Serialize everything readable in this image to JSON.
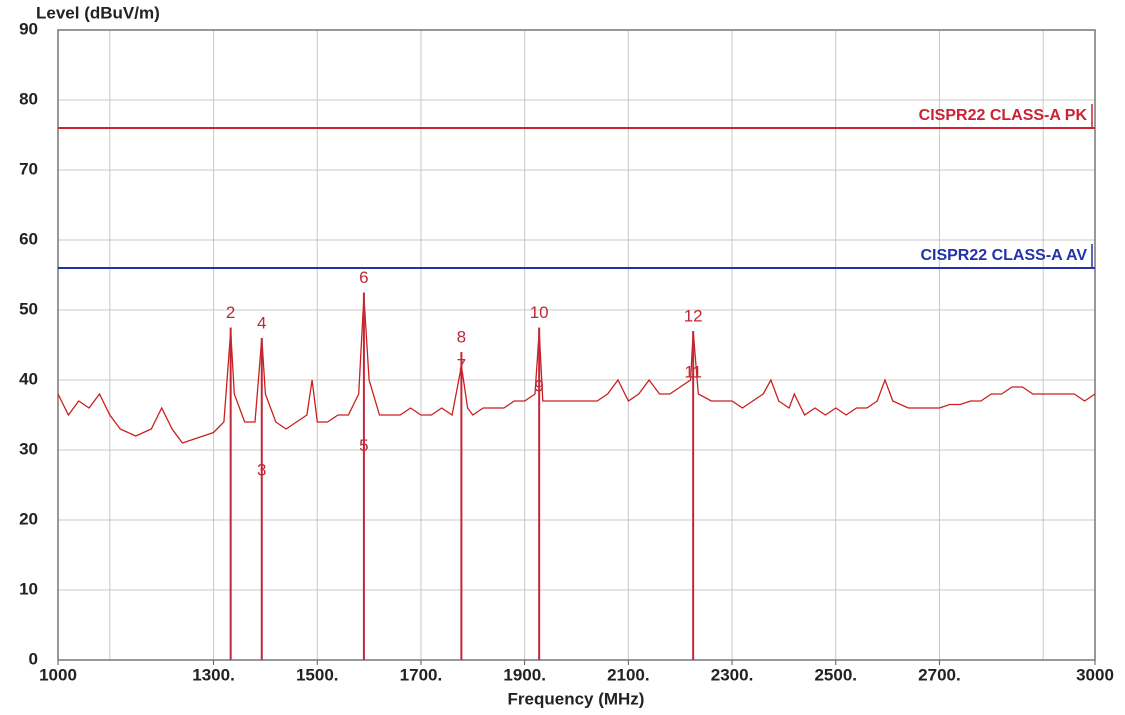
{
  "chart_data": {
    "type": "line",
    "x_label": "Frequency (MHz)",
    "y_label": "Level (dBuV/m)",
    "xlim": [
      1000,
      3000
    ],
    "ylim": [
      0,
      90
    ],
    "xticks": [
      1000,
      {
        "value": 1300,
        "label": "1300."
      },
      {
        "value": 1500,
        "label": "1500."
      },
      {
        "value": 1700,
        "label": "1700."
      },
      {
        "value": 1900,
        "label": "1900."
      },
      {
        "value": 2100,
        "label": "2100."
      },
      {
        "value": 2300,
        "label": "2300."
      },
      {
        "value": 2500,
        "label": "2500."
      },
      {
        "value": 2700,
        "label": "2700."
      },
      3000
    ],
    "xgrid": [
      1100,
      1300,
      1500,
      1700,
      1900,
      2100,
      2300,
      2500,
      2700,
      2900
    ],
    "yticks": [
      0,
      10,
      20,
      30,
      40,
      50,
      60,
      70,
      80,
      90
    ],
    "grid": true,
    "x": [
      1000,
      1020,
      1040,
      1060,
      1080,
      1100,
      1120,
      1150,
      1180,
      1200,
      1220,
      1240,
      1260,
      1280,
      1300,
      1320,
      1333,
      1340,
      1360,
      1380,
      1393,
      1400,
      1420,
      1440,
      1460,
      1480,
      1490,
      1500,
      1520,
      1540,
      1560,
      1580,
      1590,
      1600,
      1620,
      1640,
      1660,
      1680,
      1700,
      1720,
      1740,
      1760,
      1778,
      1790,
      1800,
      1820,
      1840,
      1860,
      1880,
      1900,
      1920,
      1928,
      1935,
      1960,
      1980,
      2000,
      2020,
      2040,
      2060,
      2080,
      2100,
      2120,
      2140,
      2160,
      2180,
      2200,
      2220,
      2225,
      2235,
      2260,
      2280,
      2300,
      2320,
      2340,
      2360,
      2375,
      2390,
      2410,
      2420,
      2440,
      2460,
      2480,
      2500,
      2520,
      2540,
      2560,
      2580,
      2595,
      2610,
      2640,
      2660,
      2680,
      2700,
      2720,
      2740,
      2760,
      2780,
      2800,
      2820,
      2840,
      2860,
      2880,
      2900,
      2920,
      2940,
      2960,
      2980,
      3000
    ],
    "series": [
      {
        "color": "#cc1f1f",
        "values": [
          38,
          35,
          37,
          36,
          38,
          35,
          33,
          32,
          33,
          36,
          33,
          31,
          31.5,
          32,
          32.5,
          34,
          47,
          38,
          34,
          34,
          46,
          38,
          34,
          33,
          34,
          35,
          40,
          34,
          34,
          35,
          35,
          38,
          52,
          40,
          35,
          35,
          35,
          36,
          35,
          35,
          36,
          35,
          42,
          36,
          35,
          36,
          36,
          36,
          37,
          37,
          38,
          47,
          37,
          37,
          37,
          37,
          37,
          37,
          38,
          40,
          37,
          38,
          40,
          38,
          38,
          39,
          40,
          47,
          38,
          37,
          37,
          37,
          36,
          37,
          38,
          40,
          37,
          36,
          38,
          35,
          36,
          35,
          36,
          35,
          36,
          36,
          37,
          40,
          37,
          36,
          36,
          36,
          36,
          36.5,
          36.5,
          37,
          37,
          38,
          38,
          39,
          39,
          38,
          38,
          38,
          38,
          38,
          37,
          38
        ]
      }
    ],
    "limits": [
      {
        "name": "CISPR22 CLASS-A PK",
        "value": 76,
        "color": "#cc2233"
      },
      {
        "name": "CISPR22 CLASS-A AV",
        "value": 56,
        "color": "#2233aa"
      }
    ],
    "markers": [
      {
        "label": "2",
        "x": 1333,
        "level": 47.5,
        "line": true
      },
      {
        "label": "3",
        "x": 1393,
        "level": 27,
        "line": false
      },
      {
        "label": "4",
        "x": 1393,
        "level": 46,
        "line": true
      },
      {
        "label": "5",
        "x": 1590,
        "level": 30.5,
        "line": false
      },
      {
        "label": "6",
        "x": 1590,
        "level": 52.5,
        "line": true
      },
      {
        "label": "7",
        "x": 1778,
        "level": 42,
        "line": false
      },
      {
        "label": "8",
        "x": 1778,
        "level": 44,
        "line": true
      },
      {
        "label": "9",
        "x": 1928,
        "level": 39,
        "line": false
      },
      {
        "label": "10",
        "x": 1928,
        "level": 47.5,
        "line": true
      },
      {
        "label": "11",
        "x": 2225,
        "level": 41,
        "line": false
      },
      {
        "label": "12",
        "x": 2225,
        "level": 47,
        "line": true
      }
    ],
    "marker_color": "#c02838"
  }
}
